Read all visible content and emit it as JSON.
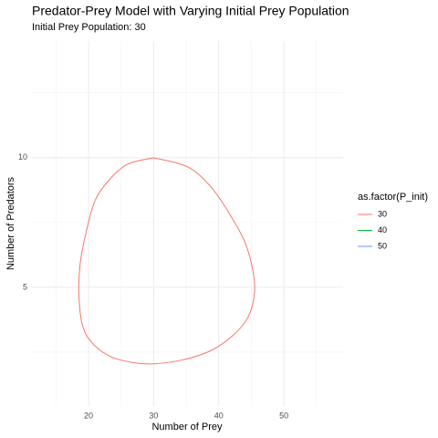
{
  "chart_data": {
    "type": "path",
    "title": "Predator-Prey Model with Varying Initial Prey Population",
    "subtitle": "Initial Prey Population: 30",
    "x_label": "Number of Prey",
    "y_label": "Number of Predators",
    "legend_title": "as.factor(P_init)",
    "legend": "right",
    "grid": true,
    "xlim": [
      11.3,
      59.1
    ],
    "ylim": [
      0.42,
      14.5
    ],
    "xticks": [
      20,
      30,
      40,
      50
    ],
    "yticks": [
      5,
      10
    ],
    "xminor": [
      15,
      25,
      35,
      45,
      55
    ],
    "yminor": [
      2.5,
      7.5,
      12.5
    ],
    "series": [
      {
        "name": "30",
        "color": "#F8766D",
        "x": [
          30,
          26,
          23.2,
          21,
          19.6,
          18.7,
          18.5,
          19,
          20.4,
          23.2,
          26.7,
          30,
          34.4,
          38.7,
          42.2,
          44.5,
          45.5,
          45.2,
          44,
          41.5,
          38.7,
          35.2,
          30
        ],
        "values": [
          10,
          9.75,
          9.15,
          8.35,
          7.1,
          5.9,
          4.8,
          3.6,
          2.9,
          2.35,
          2.1,
          2.05,
          2.2,
          2.55,
          3.15,
          3.85,
          4.8,
          5.7,
          6.75,
          7.9,
          8.9,
          9.65,
          10
        ]
      },
      {
        "name": "40",
        "color": "#00BA38",
        "x": [],
        "values": []
      },
      {
        "name": "50",
        "color": "#619CFF",
        "x": [],
        "values": []
      }
    ]
  }
}
